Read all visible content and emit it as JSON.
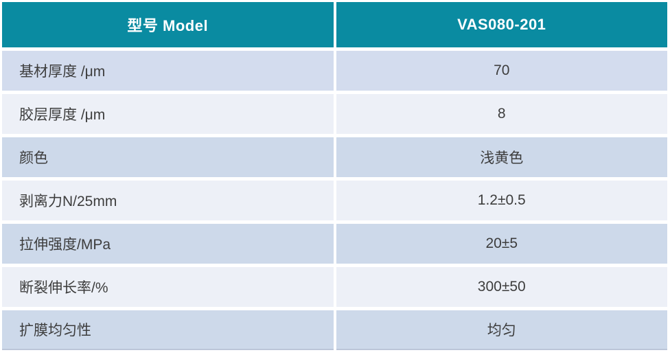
{
  "table": {
    "header": {
      "model_label": "型号 Model",
      "model_value": "VAS080-201"
    },
    "rows": [
      {
        "label": "基材厚度 /μm",
        "value": "70"
      },
      {
        "label": "胶层厚度  /μm",
        "value": "8"
      },
      {
        "label": "颜色",
        "value": "浅黄色"
      },
      {
        "label": "剥离力N/25mm",
        "value": "1.2±0.5"
      },
      {
        "label": "拉伸强度/MPa",
        "value": "20±5"
      },
      {
        "label": "断裂伸长率/%",
        "value": "300±50"
      },
      {
        "label": "扩膜均匀性",
        "value": "均匀"
      }
    ]
  },
  "colors": {
    "header_background": "#0a8ba1",
    "header_text": "#ffffff",
    "row_band_first": "#d3dcee",
    "row_band_light": "#edf0f7",
    "row_band_blue": "#cdd9ea",
    "body_text": "#3d3d3d",
    "gutter": "#ffffff",
    "bottom_rule": "#bcc6d8"
  }
}
